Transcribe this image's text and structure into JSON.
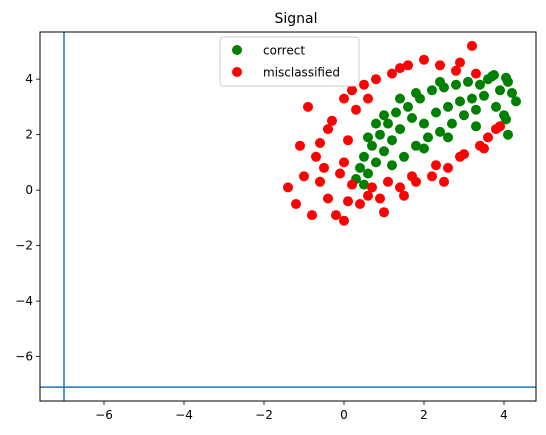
{
  "chart_data": {
    "type": "scatter",
    "title": "Signal",
    "xlabel": "",
    "ylabel": "",
    "xlim": [
      -7.6,
      4.8
    ],
    "ylim": [
      -7.6,
      5.7
    ],
    "xticks": [
      -6,
      -4,
      -2,
      0,
      2,
      4
    ],
    "yticks": [
      -6,
      -4,
      -2,
      0,
      2,
      4
    ],
    "xtick_labels": [
      "−6",
      "−4",
      "−2",
      "0",
      "2",
      "4"
    ],
    "ytick_labels": [
      "−6",
      "−4",
      "−2",
      "0",
      "2",
      "4"
    ],
    "grid": false,
    "legend_position": "top-center",
    "reference_lines": {
      "vertical_x": -7.0,
      "horizontal_y": -7.1,
      "color": "#1f77b4"
    },
    "series": [
      {
        "name": "correct",
        "color": "#008000",
        "points": [
          [
            0.3,
            0.4
          ],
          [
            0.4,
            0.8
          ],
          [
            0.5,
            1.2
          ],
          [
            0.6,
            0.6
          ],
          [
            0.7,
            1.6
          ],
          [
            0.8,
            1.0
          ],
          [
            0.9,
            2.0
          ],
          [
            1.0,
            1.4
          ],
          [
            1.1,
            2.4
          ],
          [
            1.2,
            1.8
          ],
          [
            1.3,
            2.8
          ],
          [
            1.4,
            2.2
          ],
          [
            1.5,
            1.2
          ],
          [
            1.6,
            3.0
          ],
          [
            1.7,
            2.6
          ],
          [
            1.8,
            1.6
          ],
          [
            1.9,
            3.3
          ],
          [
            2.0,
            2.4
          ],
          [
            2.1,
            1.9
          ],
          [
            2.2,
            3.6
          ],
          [
            2.3,
            2.8
          ],
          [
            2.4,
            2.1
          ],
          [
            2.5,
            3.7
          ],
          [
            2.6,
            3.0
          ],
          [
            2.7,
            2.4
          ],
          [
            2.8,
            3.8
          ],
          [
            2.9,
            3.2
          ],
          [
            3.0,
            2.7
          ],
          [
            3.1,
            3.9
          ],
          [
            3.2,
            3.3
          ],
          [
            3.3,
            2.9
          ],
          [
            3.4,
            3.8
          ],
          [
            3.5,
            3.4
          ],
          [
            3.6,
            4.0
          ],
          [
            3.7,
            4.1
          ],
          [
            3.8,
            3.0
          ],
          [
            3.9,
            3.6
          ],
          [
            4.0,
            2.7
          ],
          [
            4.1,
            3.9
          ],
          [
            4.2,
            3.5
          ],
          [
            4.05,
            4.05
          ],
          [
            3.75,
            4.15
          ],
          [
            4.3,
            3.2
          ],
          [
            4.1,
            2.0
          ],
          [
            4.05,
            2.55
          ],
          [
            0.6,
            1.9
          ],
          [
            1.0,
            2.7
          ],
          [
            1.4,
            3.3
          ],
          [
            0.5,
            0.2
          ],
          [
            1.2,
            0.9
          ],
          [
            2.0,
            1.5
          ],
          [
            2.6,
            1.9
          ],
          [
            3.3,
            2.3
          ],
          [
            0.8,
            2.4
          ],
          [
            1.8,
            3.5
          ],
          [
            2.4,
            3.9
          ]
        ]
      },
      {
        "name": "misclassified",
        "color": "#ff0000",
        "points": [
          [
            -1.4,
            0.1
          ],
          [
            -1.2,
            -0.5
          ],
          [
            -1.0,
            0.5
          ],
          [
            -0.8,
            -0.9
          ],
          [
            -0.7,
            1.2
          ],
          [
            -0.5,
            0.8
          ],
          [
            -0.4,
            -0.3
          ],
          [
            -0.3,
            2.5
          ],
          [
            -0.2,
            -0.9
          ],
          [
            0.0,
            -1.1
          ],
          [
            0.0,
            3.3
          ],
          [
            0.1,
            -0.4
          ],
          [
            0.2,
            3.6
          ],
          [
            0.4,
            -0.5
          ],
          [
            0.6,
            -0.2
          ],
          [
            0.8,
            4.0
          ],
          [
            1.0,
            -0.8
          ],
          [
            1.2,
            4.2
          ],
          [
            1.4,
            0.1
          ],
          [
            1.6,
            4.5
          ],
          [
            1.8,
            0.3
          ],
          [
            2.0,
            4.7
          ],
          [
            2.2,
            0.5
          ],
          [
            2.4,
            4.5
          ],
          [
            2.6,
            0.8
          ],
          [
            2.8,
            4.3
          ],
          [
            3.0,
            1.3
          ],
          [
            3.2,
            5.2
          ],
          [
            3.4,
            1.6
          ],
          [
            3.6,
            1.9
          ],
          [
            3.8,
            2.2
          ],
          [
            0.2,
            0.2
          ],
          [
            -0.6,
            1.7
          ],
          [
            -0.9,
            3.0
          ],
          [
            -0.4,
            2.2
          ],
          [
            0.3,
            2.9
          ],
          [
            0.5,
            3.8
          ],
          [
            1.4,
            4.4
          ],
          [
            2.9,
            4.6
          ],
          [
            3.3,
            4.2
          ],
          [
            0.0,
            1.0
          ],
          [
            0.1,
            1.8
          ],
          [
            -0.1,
            0.6
          ],
          [
            0.7,
            0.1
          ],
          [
            1.1,
            0.3
          ],
          [
            1.7,
            0.5
          ],
          [
            2.3,
            0.9
          ],
          [
            2.9,
            1.2
          ],
          [
            3.5,
            1.5
          ],
          [
            3.9,
            2.3
          ],
          [
            -1.1,
            1.6
          ],
          [
            -0.6,
            0.3
          ],
          [
            0.9,
            -0.3
          ],
          [
            1.5,
            -0.2
          ],
          [
            2.5,
            0.3
          ],
          [
            0.6,
            3.3
          ]
        ]
      }
    ]
  }
}
